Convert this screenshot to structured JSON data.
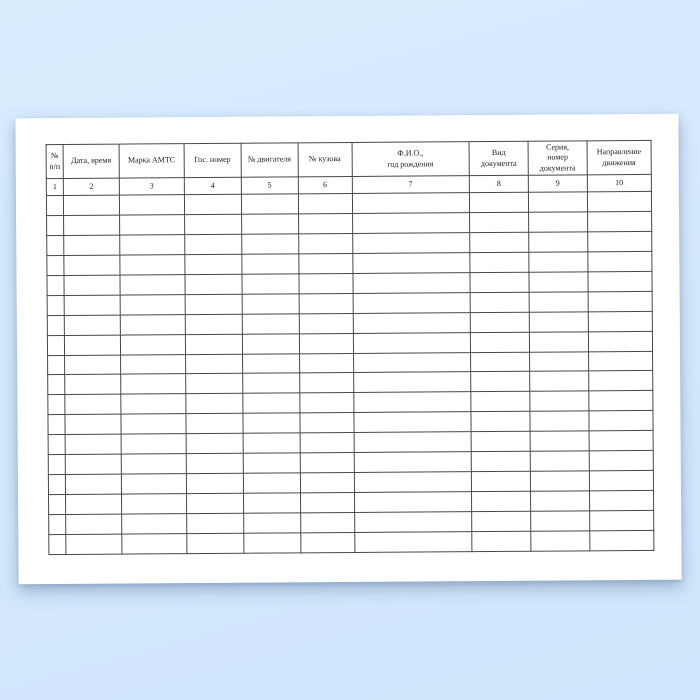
{
  "table": {
    "columns": [
      {
        "number": "1",
        "label": "№\nп/п"
      },
      {
        "number": "2",
        "label": "Дата, время"
      },
      {
        "number": "3",
        "label": "Марка АМТС"
      },
      {
        "number": "4",
        "label": "Гос. номер"
      },
      {
        "number": "5",
        "label": "№ двигателя"
      },
      {
        "number": "6",
        "label": "№ кузова"
      },
      {
        "number": "7",
        "label": "Ф.И.О.,\nгод рождения"
      },
      {
        "number": "8",
        "label": "Вид\nдокумента"
      },
      {
        "number": "9",
        "label": "Серия,\nномер\nдокумента"
      },
      {
        "number": "10",
        "label": "Направление\nдвижения"
      }
    ],
    "empty_row_count": 18
  },
  "colors": {
    "background": "#d4e9fd",
    "paper": "#ffffff",
    "table_line": "#474747",
    "text": "#1c1c1c"
  }
}
